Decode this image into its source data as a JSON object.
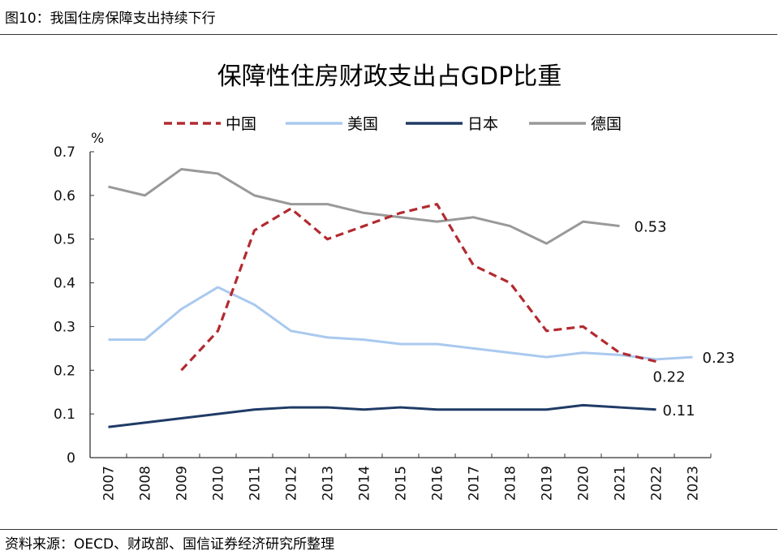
{
  "figure_label": "图10：我国住房保障支出持续下行",
  "source": "资料来源：OECD、财政部、国信证券经济研究所整理",
  "chart_data": {
    "type": "line",
    "title": "保障性住房财政支出占GDP比重",
    "ylabel": "%",
    "xlabel": "",
    "ylim": [
      0,
      0.7
    ],
    "yticks": [
      "0",
      "0.1",
      "0.2",
      "0.3",
      "0.4",
      "0.5",
      "0.6",
      "0.7"
    ],
    "grid": false,
    "legend": "top",
    "categories": [
      "2007",
      "2008",
      "2009",
      "2010",
      "2011",
      "2012",
      "2013",
      "2014",
      "2015",
      "2016",
      "2017",
      "2018",
      "2019",
      "2020",
      "2021",
      "2022",
      "2023"
    ],
    "series": [
      {
        "name": "中国",
        "color": "#b22a30",
        "dash": true,
        "values": [
          null,
          null,
          0.2,
          0.29,
          0.52,
          0.57,
          0.5,
          0.53,
          0.56,
          0.58,
          0.44,
          0.4,
          0.29,
          0.3,
          0.24,
          0.22,
          null
        ],
        "end_label": "0.22"
      },
      {
        "name": "美国",
        "color": "#a9c9ef",
        "dash": false,
        "values": [
          0.27,
          0.27,
          0.34,
          0.39,
          0.35,
          0.29,
          0.275,
          0.27,
          0.26,
          0.26,
          0.25,
          0.24,
          0.23,
          0.24,
          0.235,
          0.225,
          0.23
        ],
        "end_label": "0.23"
      },
      {
        "name": "日本",
        "color": "#1f3b66",
        "dash": false,
        "values": [
          0.07,
          0.08,
          0.09,
          0.1,
          0.11,
          0.115,
          0.115,
          0.11,
          0.115,
          0.11,
          0.11,
          0.11,
          0.11,
          0.12,
          0.115,
          0.11,
          null
        ],
        "end_label": "0.11"
      },
      {
        "name": "德国",
        "color": "#999999",
        "dash": false,
        "values": [
          0.62,
          0.6,
          0.66,
          0.65,
          0.6,
          0.58,
          0.58,
          0.56,
          0.55,
          0.54,
          0.55,
          0.53,
          0.49,
          0.54,
          0.53,
          null,
          null
        ],
        "end_label": "0.53"
      }
    ]
  }
}
